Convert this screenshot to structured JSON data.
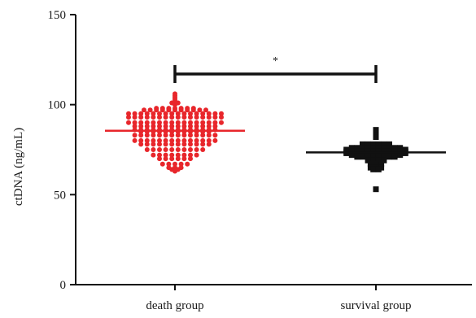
{
  "chart_data": {
    "type": "scatter",
    "ylabel": "ctDNA (ng/mL)",
    "ylim": [
      0,
      150
    ],
    "yticks": [
      0,
      50,
      100,
      150
    ],
    "categories": [
      "death group",
      "survival group"
    ],
    "grid": false,
    "series": [
      {
        "name": "death group",
        "color": "#e8262b",
        "marker": "circle",
        "center_line": 85.5,
        "values": [
          105,
          106,
          104,
          103,
          101,
          102,
          100,
          101,
          98,
          97,
          98,
          97,
          97,
          97,
          98,
          97,
          97,
          97,
          98,
          97,
          97,
          98,
          97,
          98,
          97,
          98,
          95,
          95,
          95,
          95,
          95,
          95,
          95,
          95,
          95,
          95,
          95,
          95,
          95,
          95,
          95,
          95,
          93,
          93,
          93,
          93,
          93,
          93,
          93,
          93,
          93,
          93,
          93,
          93,
          93,
          93,
          93,
          93,
          90,
          90,
          90,
          90,
          90,
          90,
          90,
          90,
          90,
          90,
          90,
          90,
          90,
          90,
          90,
          90,
          88,
          88,
          88,
          88,
          88,
          88,
          88,
          88,
          88,
          88,
          88,
          88,
          88,
          88,
          86,
          86,
          86,
          86,
          86,
          86,
          86,
          86,
          86,
          86,
          86,
          86,
          86,
          86,
          85,
          85,
          85,
          85,
          85,
          85,
          85,
          85,
          85,
          85,
          85,
          85,
          83,
          83,
          83,
          83,
          83,
          83,
          83,
          83,
          83,
          83,
          83,
          83,
          83,
          83,
          80,
          80,
          80,
          80,
          80,
          80,
          80,
          80,
          80,
          80,
          80,
          80,
          80,
          80,
          78,
          78,
          78,
          78,
          78,
          78,
          78,
          78,
          78,
          78,
          78,
          78,
          75,
          75,
          75,
          75,
          75,
          75,
          75,
          75,
          75,
          75,
          72,
          72,
          72,
          72,
          72,
          72,
          72,
          72,
          70,
          70,
          70,
          70,
          70,
          70,
          67,
          67,
          67,
          67,
          67,
          65,
          65,
          64,
          65,
          64,
          63
        ]
      },
      {
        "name": "survival group",
        "color": "#111111",
        "marker": "square",
        "center_line": 73.5,
        "values": [
          86,
          83,
          82,
          78,
          78,
          78,
          78,
          78,
          78,
          76,
          76,
          76,
          76,
          76,
          76,
          76,
          76,
          76,
          76,
          75,
          75,
          75,
          75,
          75,
          75,
          75,
          75,
          75,
          75,
          75,
          75,
          74,
          74,
          74,
          74,
          74,
          74,
          74,
          74,
          74,
          74,
          74,
          74,
          73,
          73,
          73,
          73,
          73,
          73,
          73,
          73,
          73,
          73,
          73,
          73,
          72,
          72,
          72,
          72,
          72,
          72,
          72,
          72,
          72,
          72,
          71,
          71,
          71,
          71,
          71,
          71,
          71,
          71,
          69,
          69,
          69,
          69,
          67,
          67,
          67,
          65,
          65,
          65,
          64,
          64,
          53
        ]
      }
    ],
    "significance": {
      "label": "*",
      "y": 117
    }
  }
}
